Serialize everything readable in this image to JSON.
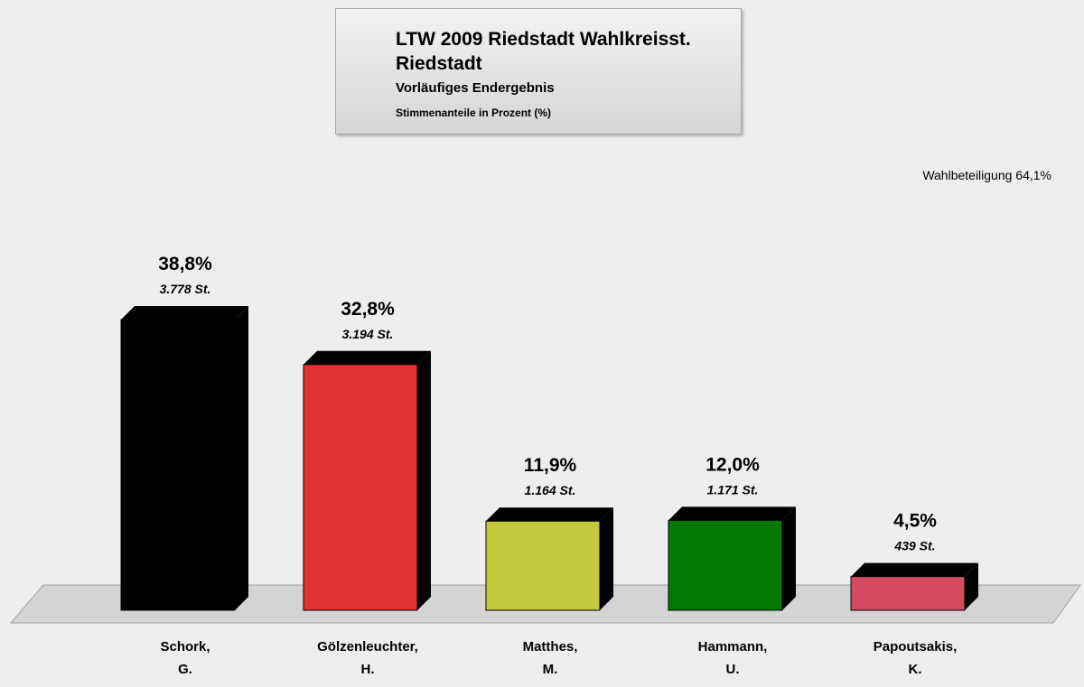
{
  "header": {
    "title_line1": "LTW 2009 Riedstadt Wahlkreisst.",
    "title_line2": "Riedstadt",
    "subtitle": "Vorläufiges Endergebnis",
    "note": "Stimmenanteile in Prozent (%)"
  },
  "turnout": "Wahlbeteiligung 64,1%",
  "chart_data": {
    "type": "bar",
    "title": "LTW 2009 Riedstadt Wahlkreisst. Riedstadt",
    "subtitle": "Vorläufiges Endergebnis",
    "ylabel": "",
    "xlabel": "",
    "ylim": [
      0,
      45
    ],
    "grid": false,
    "categories": [
      [
        "Schork,",
        "G."
      ],
      [
        "Gölzenleuchter,",
        "H."
      ],
      [
        "Matthes,",
        "M."
      ],
      [
        "Hammann,",
        "U."
      ],
      [
        "Papoutsakis,",
        "K."
      ]
    ],
    "values": [
      38.8,
      32.8,
      11.9,
      12.0,
      4.5
    ],
    "value_labels": [
      "38,8%",
      "32,8%",
      "11,9%",
      "12,0%",
      "4,5%"
    ],
    "votes": [
      "3.778 St.",
      "3.194 St.",
      "1.164 St.",
      "1.171 St.",
      "439 St."
    ],
    "colors": [
      "#000000",
      "#e03232",
      "#c3c83c",
      "#007a00",
      "#d44a60"
    ]
  }
}
